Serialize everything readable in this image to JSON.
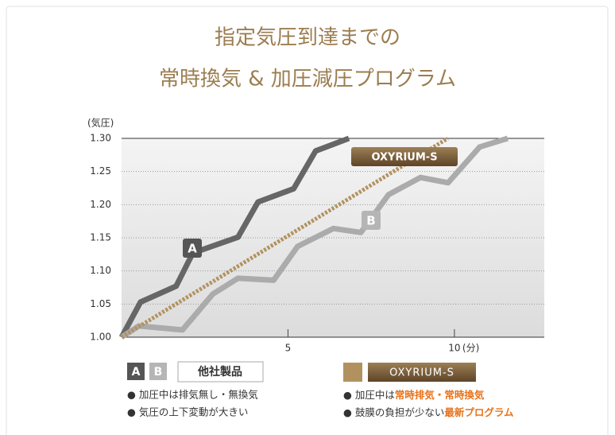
{
  "chart_data": {
    "type": "line",
    "title": [
      "指定気圧到達までの",
      "常時換気 & 加圧減圧プログラム"
    ],
    "y_label": "(気圧)",
    "x_label": "(分)",
    "xlim": [
      0,
      12.7
    ],
    "ylim": [
      1.0,
      1.3
    ],
    "xticks": [
      5,
      10
    ],
    "yticks": [
      {
        "value": 1.0,
        "label": "1.00"
      },
      1.05,
      {
        "value": 1.1,
        "label": "1.10"
      },
      1.15,
      {
        "value": 1.2,
        "label": "1.20"
      },
      1.25,
      {
        "value": 1.3,
        "label": "1.30"
      }
    ],
    "grid": true,
    "series": [
      {
        "name": "A",
        "color": "#666666",
        "x": [
          0,
          0.57,
          1.64,
          2.14,
          3.5,
          4.1,
          5.17,
          5.83,
          6.83
        ],
        "values": [
          1.0,
          1.053,
          1.077,
          1.127,
          1.151,
          1.204,
          1.224,
          1.281,
          1.3
        ]
      },
      {
        "name": "B",
        "color": "#ababab",
        "x": [
          0,
          0.52,
          1.83,
          2.74,
          3.5,
          4.57,
          5.29,
          6.36,
          7.19,
          8.02,
          8.98,
          9.81,
          10.76,
          11.6
        ],
        "values": [
          1.0,
          1.017,
          1.011,
          1.065,
          1.089,
          1.086,
          1.137,
          1.164,
          1.158,
          1.215,
          1.241,
          1.233,
          1.287,
          1.3
        ]
      },
      {
        "name": "OXYRIUM-S",
        "color": "#b1925f",
        "x": [
          0,
          9.8
        ],
        "values": [
          1.0,
          1.3
        ]
      }
    ]
  },
  "legend": {
    "others": {
      "label": "他社製品",
      "notes": [
        "● 加圧中は排気無し・無換気",
        "● 気圧の上下変動が大きい"
      ]
    },
    "oxyrium": {
      "notes": [
        [
          "● 加圧中は",
          "常時排気・常時換気"
        ],
        [
          "● 鼓膜の負担が少ない",
          "最新プログラム"
        ]
      ]
    }
  }
}
